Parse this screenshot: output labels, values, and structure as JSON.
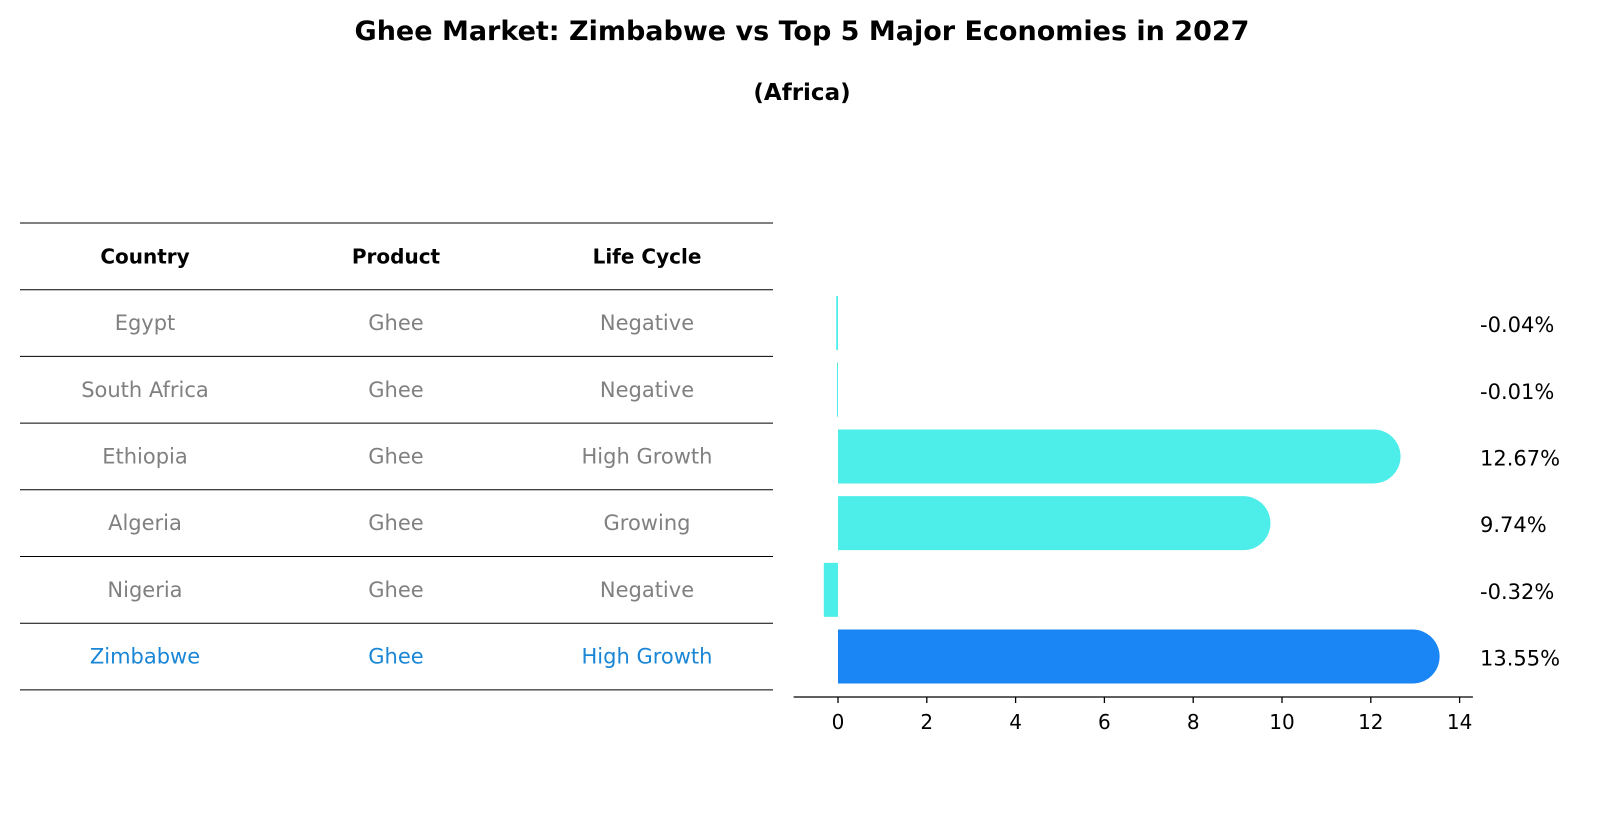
{
  "chart_data": {
    "type": "bar",
    "title": "Ghee Market: Zimbabwe vs Top 5 Major Economies in 2027",
    "subtitle": "(Africa)",
    "table": {
      "headers": [
        "Country",
        "Product",
        "Life Cycle"
      ],
      "rows": [
        {
          "country": "Egypt",
          "product": "Ghee",
          "life_cycle": "Negative"
        },
        {
          "country": "South Africa",
          "product": "Ghee",
          "life_cycle": "Negative"
        },
        {
          "country": "Ethiopia",
          "product": "Ghee",
          "life_cycle": "High Growth"
        },
        {
          "country": "Algeria",
          "product": "Ghee",
          "life_cycle": "Growing"
        },
        {
          "country": "Nigeria",
          "product": "Ghee",
          "life_cycle": "Negative"
        },
        {
          "country": "Zimbabwe",
          "product": "Ghee",
          "life_cycle": "High Growth"
        }
      ]
    },
    "categories": [
      "Egypt",
      "South Africa",
      "Ethiopia",
      "Algeria",
      "Nigeria",
      "Zimbabwe"
    ],
    "values": [
      -0.04,
      -0.01,
      12.67,
      9.74,
      -0.32,
      13.55
    ],
    "value_labels": [
      "-0.04%",
      "-0.01%",
      "12.67%",
      "9.74%",
      "-0.32%",
      "13.55%"
    ],
    "highlight": "Zimbabwe",
    "xlim": [
      -1.0,
      14.3
    ],
    "xticks": [
      0,
      2,
      4,
      6,
      8,
      10,
      12,
      14
    ],
    "xlabel": "",
    "ylabel": "",
    "colors": {
      "bar": "#4DEDEA",
      "highlight_bar": "#1A86F6",
      "text_muted": "#808080",
      "text_highlight": "#1A86D6",
      "rule": "#000000"
    }
  }
}
